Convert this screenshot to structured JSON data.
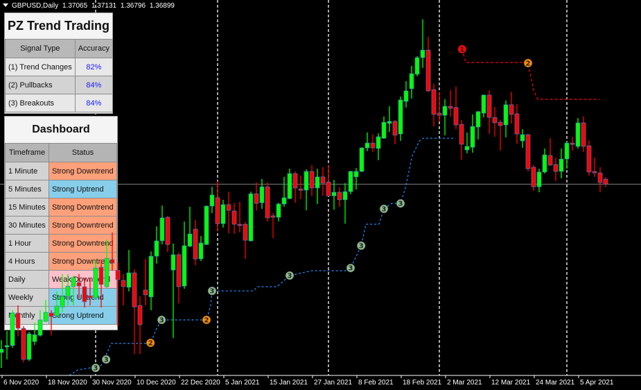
{
  "header": {
    "symbol": "GBPUSD,Daily",
    "open": "1.37065",
    "high": "1.37131",
    "low": "1.36796",
    "close": "1.36899"
  },
  "pz_panel": {
    "title": "PZ Trend Trading",
    "col_signal": "Signal Type",
    "col_accuracy": "Accuracy",
    "rows": [
      {
        "label": "(1) Trend Changes",
        "accuracy": "82%"
      },
      {
        "label": "(2) Pullbacks",
        "accuracy": "84%"
      },
      {
        "label": "(3) Breakouts",
        "accuracy": "84%"
      }
    ]
  },
  "dashboard": {
    "title": "Dashboard",
    "col_timeframe": "Timeframe",
    "col_status": "Status",
    "rows": [
      {
        "timeframe": "1 Minute",
        "status": "Strong Downtrend"
      },
      {
        "timeframe": "5 Minutes",
        "status": "Strong Uptrend"
      },
      {
        "timeframe": "15 Minutes",
        "status": "Strong Downtrend"
      },
      {
        "timeframe": "30 Minutes",
        "status": "Strong Downtrend"
      },
      {
        "timeframe": "1 Hour",
        "status": "Strong Downtrend"
      },
      {
        "timeframe": "4 Hours",
        "status": "Strong Downtrend"
      },
      {
        "timeframe": "Daily",
        "status": "Weak Downtrend"
      },
      {
        "timeframe": "Weekly",
        "status": "Strong Uptrend"
      },
      {
        "timeframe": "Monthly",
        "status": "Strong Uptrend"
      }
    ],
    "status_colors": {
      "Strong Downtrend": "#ffa07a",
      "Strong Uptrend": "#87ceeb",
      "Weak Downtrend": "#ffc0cb"
    }
  },
  "colors": {
    "bull": "#00ff00",
    "bear": "#ff0000",
    "support_line": "#1e90ff",
    "resistance_line": "#ff0000",
    "bid_line": "#808080",
    "marker_1": "#ff0000",
    "marker_2": "#ff8c00",
    "marker_3": "#8fbc8f"
  },
  "chart_data": {
    "type": "candlestick",
    "ylim": [
      1.3056,
      1.43
    ],
    "bid": 1.36899,
    "x_tick_labels": [
      "6 Nov 2020",
      "18 Nov 2020",
      "30 Nov 2020",
      "10 Dec 2020",
      "22 Dec 2020",
      "5 Jan 2021",
      "15 Jan 2021",
      "27 Jan 2021",
      "8 Feb 2021",
      "18 Feb 2021",
      "2 Mar 2021",
      "12 Mar 2021",
      "24 Mar 2021",
      "5 Apr 2021"
    ],
    "candles_ohlc": [
      [
        1.3132,
        1.3173,
        1.3081,
        1.3143
      ],
      [
        1.315,
        1.3203,
        1.3109,
        1.3155
      ],
      [
        1.3155,
        1.3272,
        1.3148,
        1.3263
      ],
      [
        1.3263,
        1.3288,
        1.3185,
        1.3212
      ],
      [
        1.3212,
        1.3219,
        1.3099,
        1.3109
      ],
      [
        1.3109,
        1.3201,
        1.3104,
        1.3194
      ],
      [
        1.3168,
        1.3231,
        1.3157,
        1.3191
      ],
      [
        1.3189,
        1.3272,
        1.3185,
        1.324
      ],
      [
        1.3235,
        1.3306,
        1.3233,
        1.3265
      ],
      [
        1.3263,
        1.3272,
        1.3189,
        1.3251
      ],
      [
        1.3254,
        1.3334,
        1.3247,
        1.3286
      ],
      [
        1.3283,
        1.3392,
        1.3265,
        1.3318
      ],
      [
        1.3318,
        1.3392,
        1.3288,
        1.3352
      ],
      [
        1.335,
        1.3387,
        1.3288,
        1.338
      ],
      [
        1.3364,
        1.3392,
        1.3311,
        1.3352
      ],
      [
        1.335,
        1.338,
        1.3281,
        1.33
      ],
      [
        1.332,
        1.338,
        1.3288,
        1.3313
      ],
      [
        1.3313,
        1.3438,
        1.3306,
        1.3412
      ],
      [
        1.3415,
        1.3438,
        1.3281,
        1.3357
      ],
      [
        1.335,
        1.3507,
        1.3346,
        1.3444
      ],
      [
        1.344,
        1.353,
        1.3403,
        1.3428
      ],
      [
        1.3405,
        1.3431,
        1.3219,
        1.3373
      ],
      [
        1.3371,
        1.3392,
        1.3288,
        1.335
      ],
      [
        1.3348,
        1.3472,
        1.3334,
        1.3396
      ],
      [
        1.3396,
        1.3408,
        1.3127,
        1.3283
      ],
      [
        1.3288,
        1.3318,
        1.3127,
        1.3224
      ],
      [
        1.3339,
        1.3442,
        1.3288,
        1.3323
      ],
      [
        1.3316,
        1.3467,
        1.3272,
        1.3451
      ],
      [
        1.3451,
        1.355,
        1.3426,
        1.3502
      ],
      [
        1.3502,
        1.3619,
        1.349,
        1.3578
      ],
      [
        1.358,
        1.3585,
        1.3465,
        1.349
      ],
      [
        1.3405,
        1.3493,
        1.318,
        1.3456
      ],
      [
        1.3456,
        1.3463,
        1.3295,
        1.335
      ],
      [
        1.3352,
        1.3566,
        1.3343,
        1.3486
      ],
      [
        1.3484,
        1.3615,
        1.3481,
        1.3525
      ],
      [
        1.3541,
        1.3571,
        1.3421,
        1.3442
      ],
      [
        1.3442,
        1.3518,
        1.3435,
        1.3495
      ],
      [
        1.349,
        1.3619,
        1.3488,
        1.3617
      ],
      [
        1.3617,
        1.3681,
        1.3594,
        1.3654
      ],
      [
        1.3645,
        1.37,
        1.3534,
        1.3559
      ],
      [
        1.3559,
        1.3638,
        1.3546,
        1.3622
      ],
      [
        1.3622,
        1.3665,
        1.3527,
        1.3603
      ],
      [
        1.3601,
        1.3628,
        1.3525,
        1.3557
      ],
      [
        1.3557,
        1.3631,
        1.353,
        1.3553
      ],
      [
        1.3557,
        1.3564,
        1.3442,
        1.3504
      ],
      [
        1.3502,
        1.3665,
        1.35,
        1.3658
      ],
      [
        1.3658,
        1.3695,
        1.3603,
        1.3626
      ],
      [
        1.3628,
        1.3707,
        1.3608,
        1.3681
      ],
      [
        1.3681,
        1.3695,
        1.3566,
        1.3578
      ],
      [
        1.3585,
        1.3594,
        1.3511,
        1.358
      ],
      [
        1.358,
        1.3628,
        1.3566,
        1.3624
      ],
      [
        1.3624,
        1.3714,
        1.3615,
        1.3645
      ],
      [
        1.3642,
        1.3741,
        1.364,
        1.3725
      ],
      [
        1.3725,
        1.3732,
        1.3628,
        1.3677
      ],
      [
        1.3674,
        1.3718,
        1.364,
        1.367
      ],
      [
        1.367,
        1.3739,
        1.3603,
        1.3732
      ],
      [
        1.3732,
        1.3753,
        1.3651,
        1.3677
      ],
      [
        1.3677,
        1.3741,
        1.3624,
        1.3714
      ],
      [
        1.3714,
        1.3746,
        1.3651,
        1.3693
      ],
      [
        1.3697,
        1.3753,
        1.3649,
        1.3651
      ],
      [
        1.3651,
        1.3704,
        1.3605,
        1.3663
      ],
      [
        1.3663,
        1.3679,
        1.3615,
        1.3638
      ],
      [
        1.3638,
        1.3693,
        1.3559,
        1.3665
      ],
      [
        1.3665,
        1.3734,
        1.3656,
        1.3732
      ],
      [
        1.3714,
        1.3743,
        1.3672,
        1.3732
      ],
      [
        1.3732,
        1.3812,
        1.373,
        1.381
      ],
      [
        1.381,
        1.3861,
        1.3799,
        1.3826
      ],
      [
        1.3826,
        1.3854,
        1.3796,
        1.381
      ],
      [
        1.3808,
        1.3858,
        1.3769,
        1.3847
      ],
      [
        1.3842,
        1.3914,
        1.384,
        1.3895
      ],
      [
        1.3891,
        1.3948,
        1.3863,
        1.3898
      ],
      [
        1.3898,
        1.3902,
        1.3822,
        1.3852
      ],
      [
        1.3856,
        1.398,
        1.3833,
        1.3969
      ],
      [
        1.3964,
        1.4031,
        1.3944,
        1.3999
      ],
      [
        1.4006,
        1.4082,
        1.3973,
        1.4056
      ],
      [
        1.4054,
        1.4114,
        1.4047,
        1.4109
      ],
      [
        1.4109,
        1.4236,
        1.4075,
        1.4134
      ],
      [
        1.4134,
        1.4178,
        1.3994,
        1.3999
      ],
      [
        1.4003,
        1.4022,
        1.3881,
        1.3921
      ],
      [
        1.3925,
        1.3994,
        1.3898,
        1.3918
      ],
      [
        1.3918,
        1.3971,
        1.3852,
        1.3948
      ],
      [
        1.3948,
        1.4001,
        1.3914,
        1.3941
      ],
      [
        1.3944,
        1.4013,
        1.3872,
        1.3886
      ],
      [
        1.3888,
        1.3902,
        1.3771,
        1.3822
      ],
      [
        1.3803,
        1.3861,
        1.3792,
        1.3815
      ],
      [
        1.3812,
        1.3921,
        1.3794,
        1.3881
      ],
      [
        1.3879,
        1.3932,
        1.3838,
        1.393
      ],
      [
        1.3925,
        1.3987,
        1.3911,
        1.3985
      ],
      [
        1.3985,
        1.4001,
        1.3856,
        1.3911
      ],
      [
        1.3911,
        1.3946,
        1.3847,
        1.3893
      ],
      [
        1.3895,
        1.3902,
        1.3801,
        1.3884
      ],
      [
        1.3886,
        1.3967,
        1.3845,
        1.3953
      ],
      [
        1.3953,
        1.3996,
        1.3891,
        1.3921
      ],
      [
        1.3923,
        1.3955,
        1.3824,
        1.3856
      ],
      [
        1.3833,
        1.3872,
        1.381,
        1.3854
      ],
      [
        1.3854,
        1.3856,
        1.3732,
        1.3741
      ],
      [
        1.3746,
        1.3753,
        1.3668,
        1.3681
      ],
      [
        1.3681,
        1.3741,
        1.3663,
        1.373
      ],
      [
        1.373,
        1.3808,
        1.3725,
        1.3787
      ],
      [
        1.3785,
        1.3842,
        1.375,
        1.3753
      ],
      [
        1.3755,
        1.3778,
        1.37,
        1.3732
      ],
      [
        1.3732,
        1.3808,
        1.3709,
        1.3773
      ],
      [
        1.3773,
        1.3831,
        1.3741,
        1.3826
      ],
      [
        1.3826,
        1.3847,
        1.3801,
        1.3824
      ],
      [
        1.3815,
        1.3909,
        1.3808,
        1.3893
      ],
      [
        1.3893,
        1.3914,
        1.3796,
        1.3815
      ],
      [
        1.3817,
        1.3835,
        1.3718,
        1.373
      ],
      [
        1.3732,
        1.3778,
        1.3714,
        1.3727
      ],
      [
        1.3727,
        1.3746,
        1.3663,
        1.3695
      ],
      [
        1.37065,
        1.37131,
        1.36796,
        1.36899
      ]
    ],
    "support_line": [
      [
        12.25,
        1.3056
      ],
      [
        13.75,
        1.3074
      ],
      [
        16,
        1.3081
      ],
      [
        17,
        1.3081
      ],
      [
        18,
        1.309
      ],
      [
        18.5,
        1.3104
      ],
      [
        19.75,
        1.3162
      ],
      [
        26.9,
        1.3162
      ],
      [
        27.9,
        1.3208
      ],
      [
        28.9,
        1.324
      ],
      [
        37,
        1.324
      ],
      [
        37.75,
        1.3288
      ],
      [
        38,
        1.3336
      ],
      [
        45.4,
        1.3336
      ],
      [
        46.25,
        1.335
      ],
      [
        49.75,
        1.335
      ],
      [
        52,
        1.3387
      ],
      [
        56,
        1.3403
      ],
      [
        62.25,
        1.3403
      ],
      [
        63,
        1.3412
      ],
      [
        64.9,
        1.3486
      ],
      [
        65.75,
        1.3557
      ],
      [
        68.1,
        1.3557
      ],
      [
        69,
        1.3608
      ],
      [
        70.4,
        1.3626
      ],
      [
        72,
        1.3626
      ],
      [
        72.9,
        1.3679
      ],
      [
        74.1,
        1.3783
      ],
      [
        75.4,
        1.3833
      ],
      [
        76,
        1.3842
      ],
      [
        81.6,
        1.3842
      ]
    ],
    "resistance_line": [
      [
        83.1,
        1.4137
      ],
      [
        83.75,
        1.4093
      ],
      [
        94.75,
        1.4093
      ],
      [
        95,
        1.4091
      ],
      [
        96,
        1.4001
      ],
      [
        96.75,
        1.3971
      ],
      [
        107.9,
        1.3971
      ]
    ],
    "signals": [
      {
        "label": "3",
        "kind": "breakout",
        "index": 17,
        "price": 1.3081
      },
      {
        "label": "3",
        "kind": "breakout",
        "index": 18.9,
        "price": 1.3109
      },
      {
        "label": "2",
        "kind": "pullback",
        "index": 26.9,
        "price": 1.3164
      },
      {
        "label": "3",
        "kind": "breakout",
        "index": 28.9,
        "price": 1.324
      },
      {
        "label": "2",
        "kind": "pullback",
        "index": 37,
        "price": 1.324
      },
      {
        "label": "3",
        "kind": "breakout",
        "index": 38,
        "price": 1.3336
      },
      {
        "label": "3",
        "kind": "breakout",
        "index": 52,
        "price": 1.3387
      },
      {
        "label": "3",
        "kind": "breakout",
        "index": 63,
        "price": 1.3412
      },
      {
        "label": "3",
        "kind": "breakout",
        "index": 64.9,
        "price": 1.3486
      },
      {
        "label": "3",
        "kind": "breakout",
        "index": 69,
        "price": 1.3608
      },
      {
        "label": "3",
        "kind": "breakout",
        "index": 72,
        "price": 1.3626
      },
      {
        "label": "1",
        "kind": "trend-change",
        "index": 83.1,
        "price": 1.4137
      },
      {
        "label": "2",
        "kind": "pullback",
        "index": 95,
        "price": 1.4091
      }
    ]
  }
}
